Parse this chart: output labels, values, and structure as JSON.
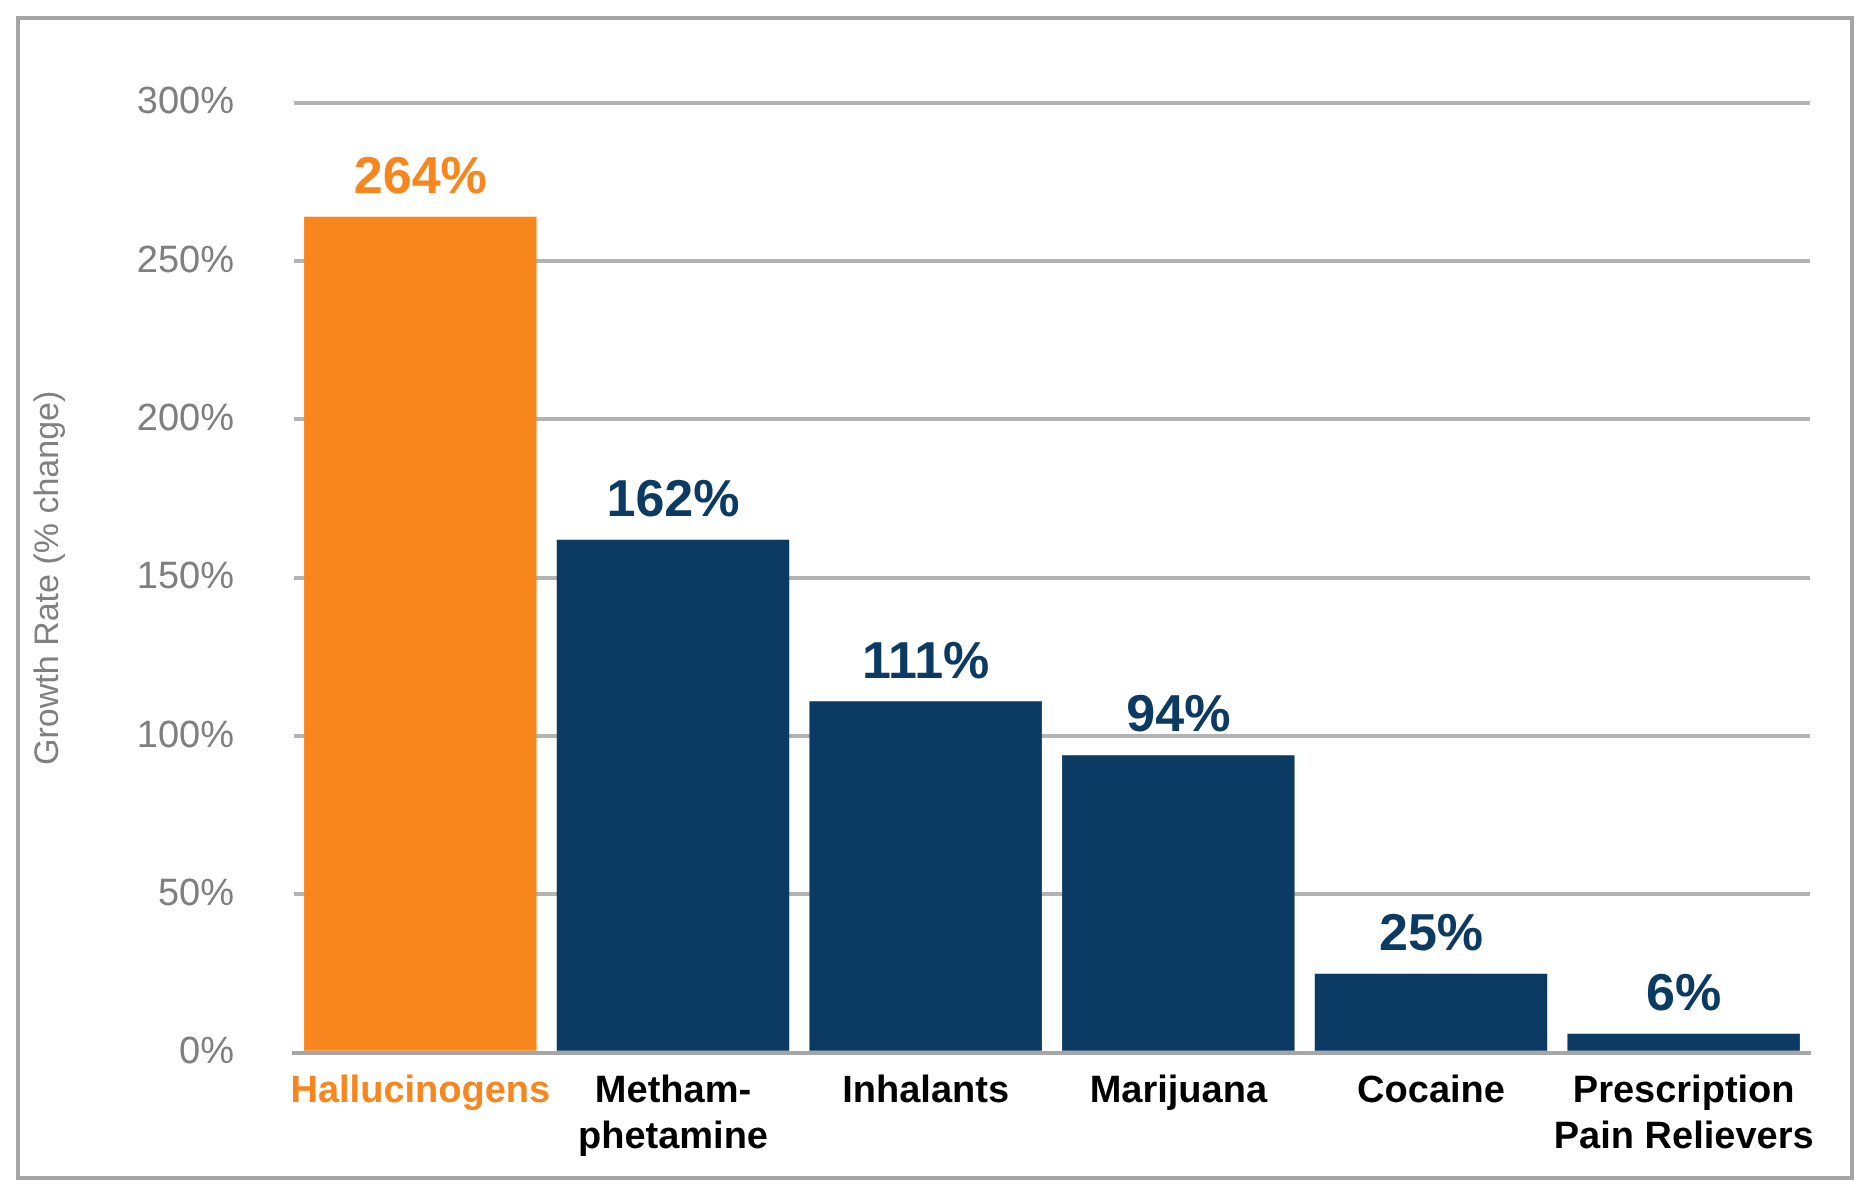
{
  "chart_data": {
    "type": "bar",
    "ylabel": "Growth Rate (% change)",
    "categories": [
      "Hallucinogens",
      "Metham-\nphetamine",
      "Inhalants",
      "Marijuana",
      "Cocaine",
      "Prescription\nPain Relievers"
    ],
    "values": [
      264,
      162,
      111,
      94,
      25,
      6
    ],
    "colors": [
      "#f7861e",
      "#0b3a63",
      "#0b3a63",
      "#0b3a63",
      "#0b3a63",
      "#0b3a63"
    ],
    "value_labels": [
      "264%",
      "162%",
      "111%",
      "94%",
      "25%",
      "6%"
    ],
    "ylim": [
      0,
      300
    ],
    "yticks": [
      {
        "value": 0,
        "label": "0%"
      },
      {
        "value": 50,
        "label": "50%"
      },
      {
        "value": 100,
        "label": "100%"
      },
      {
        "value": 150,
        "label": "150%"
      },
      {
        "value": 200,
        "label": "200%"
      },
      {
        "value": 250,
        "label": "250%"
      },
      {
        "value": 300,
        "label": "300%"
      }
    ],
    "grid": "y",
    "legend": false
  }
}
